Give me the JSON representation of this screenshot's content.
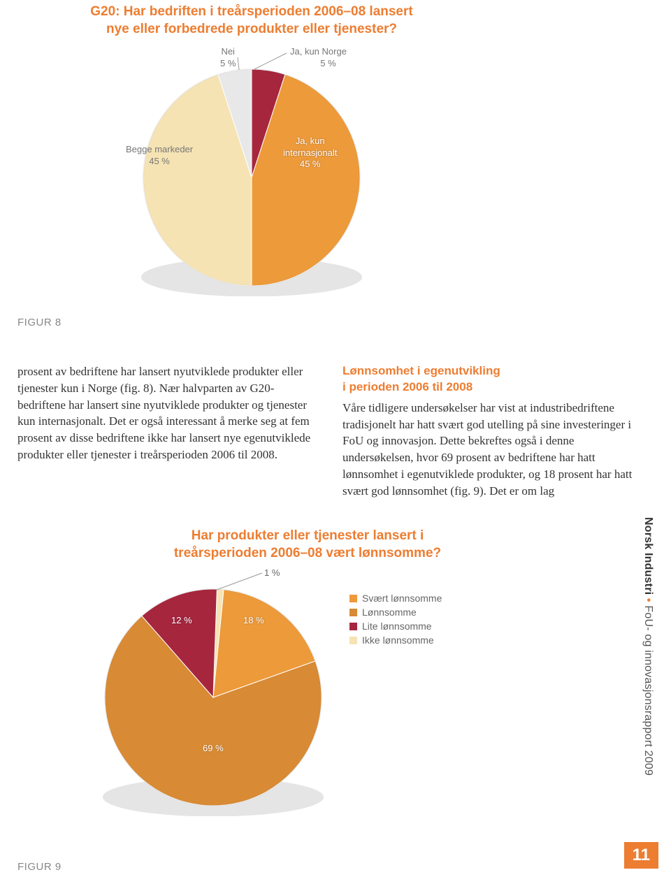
{
  "chart1": {
    "title_line1": "G20: Har bedriften i treårsperioden 2006–08 lansert",
    "title_line2": "nye eller forbedrede produkter eller tjenester?",
    "type": "pie",
    "slices": [
      {
        "label": "Begge markeder",
        "value_text": "45 %",
        "value": 45,
        "color": "#f6e3b4"
      },
      {
        "label": "Nei",
        "value_text": "5 %",
        "value": 5,
        "color": "#e8e8e8"
      },
      {
        "label": "Ja, kun Norge",
        "value_text": "5 %",
        "value": 5,
        "color": "#a6263e"
      },
      {
        "label": "Ja, kun\ninternasjonalt",
        "value_text": "45 %",
        "value": 45,
        "color": "#ed9a3a"
      }
    ],
    "outline_color": "#f0a64a",
    "background_color": "#ffffff",
    "title_color": "#ed7d31",
    "title_fontsize": 19,
    "label_fontsize": 13,
    "label_color": "#777777"
  },
  "fig8": "FIGUR 8",
  "fig9": "FIGUR 9",
  "body": {
    "left": "prosent av bedriftene har lansert nyutviklede produkter eller tjenester kun i Norge (fig. 8). Nær halvparten av G20-bedriftene har lansert sine nyutviklede produkter og tjenester kun internasjonalt. Det er også interessant å merke seg at fem prosent av disse bedriftene ikke har lansert nye egenutviklede produkter eller tjenester i treårsperioden 2006 til 2008.",
    "right_heading_l1": "Lønnsomhet i egenutvikling",
    "right_heading_l2": "i perioden 2006 til 2008",
    "right": "Våre tidligere undersøkelser har vist at industribedriftene tradisjonelt har hatt svært god utelling på sine investeringer i FoU og innovasjon. Dette bekreftes også i denne undersøkelsen, hvor 69 prosent av bedriftene har hatt lønnsomhet i egenutviklede produkter, og 18 prosent har hatt svært god lønnsomhet (fig. 9). Det er om lag"
  },
  "chart2": {
    "title_line1": "Har produkter eller tjenester lansert i",
    "title_line2": "treårsperioden 2006–08 vært lønnsomme?",
    "type": "pie",
    "slices": [
      {
        "label": "Svært lønnsomme",
        "value_text": "18 %",
        "value": 18,
        "color": "#ed9a3a"
      },
      {
        "label": "Lønnsomme",
        "value_text": "69 %",
        "value": 69,
        "color": "#d88a35"
      },
      {
        "label": "Lite lønnsomme",
        "value_text": "12 %",
        "value": 12,
        "color": "#a6263e"
      },
      {
        "label": "Ikke lønnsomme",
        "value_text": "1 %",
        "value": 1,
        "color": "#f6e3b4"
      }
    ],
    "outline_color": "#f0a64a",
    "title_color": "#ed7d31",
    "title_fontsize": 19,
    "label_fontsize": 13,
    "legend_fontsize": 14
  },
  "side": {
    "bold": "Norsk Industri",
    "dot": "•",
    "rest": "FoU- og innovasjonsrapport 2009"
  },
  "page_number": "11"
}
